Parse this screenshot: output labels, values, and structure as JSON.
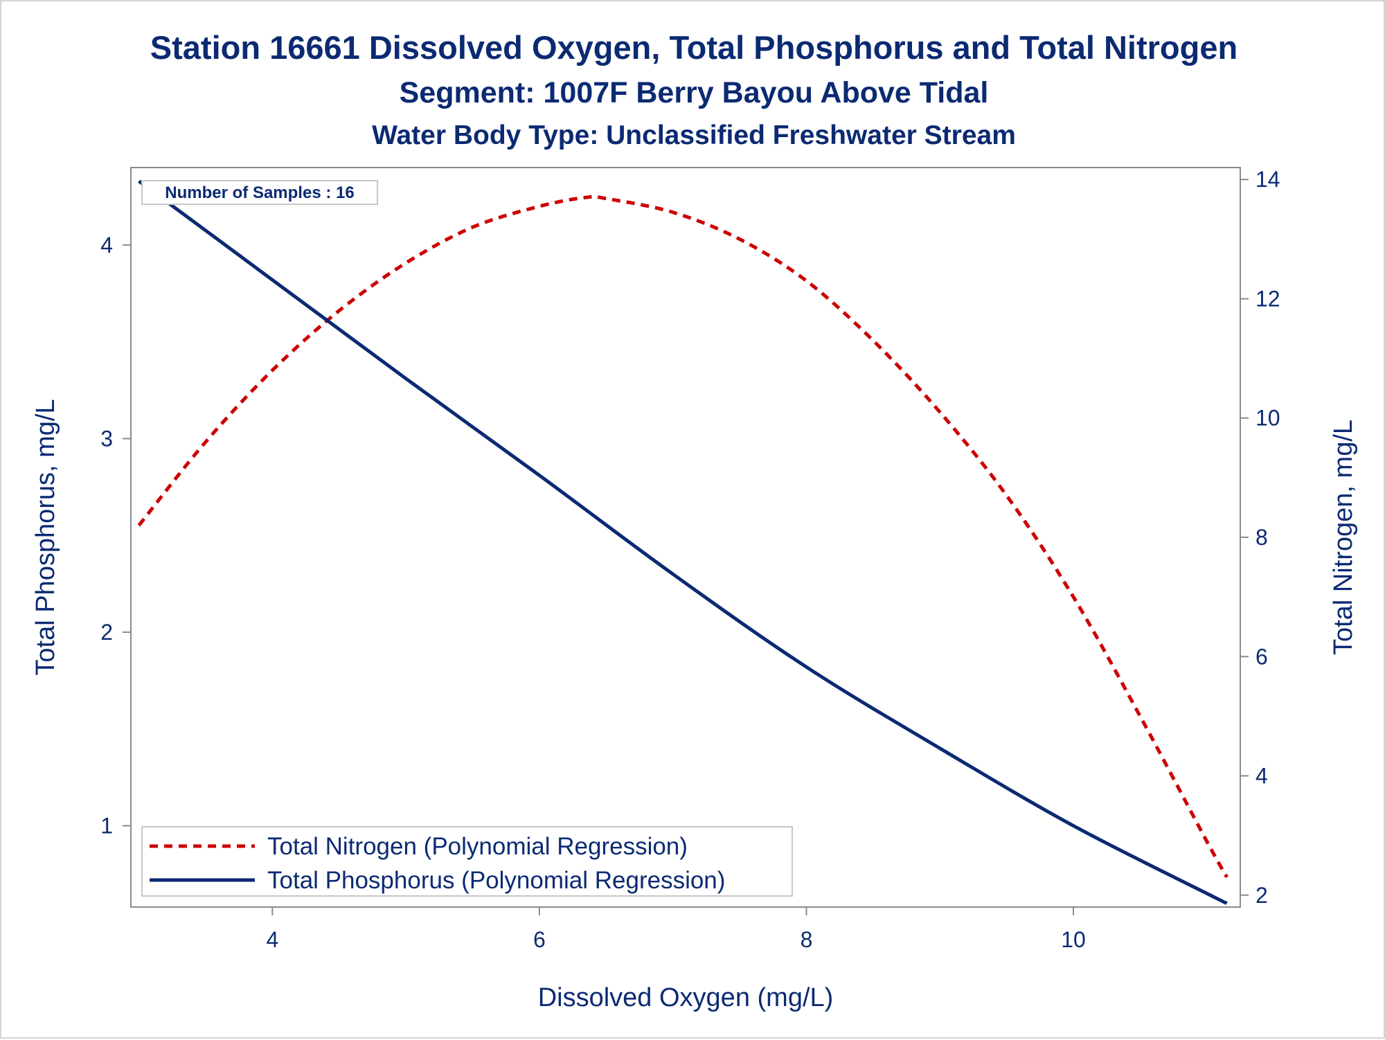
{
  "chart_data": {
    "type": "line",
    "title": "Station 16661  Dissolved Oxygen, Total Phosphorus and Total Nitrogen",
    "subtitle": "Segment: 1007F  Berry Bayou Above Tidal",
    "subtitle2": "Water Body Type: Unclassified Freshwater Stream",
    "xlabel": "Dissolved Oxygen (mg/L)",
    "ylabel": "Total Phosphorus, mg/L",
    "y2label": "Total Nitrogen, mg/L",
    "xlim": [
      2.94,
      11.25
    ],
    "ylim": [
      0.58,
      4.4
    ],
    "y2lim": [
      1.8,
      14.2
    ],
    "x_ticks": [
      4,
      6,
      8,
      10
    ],
    "y_ticks": [
      1,
      2,
      3,
      4
    ],
    "y2_ticks": [
      2,
      4,
      6,
      8,
      10,
      12,
      14
    ],
    "grid": false,
    "legend_position": "bottom-left",
    "inset_label": "Number of Samples : 16",
    "series": [
      {
        "name": "Total Nitrogen (Polynomial Regression)",
        "axis": "right",
        "style": "dashed",
        "color": "#cc0000",
        "x": [
          3.0,
          3.5,
          4.0,
          4.5,
          5.0,
          5.5,
          6.0,
          6.35,
          6.5,
          7.0,
          7.5,
          8.0,
          8.5,
          9.0,
          9.5,
          10.0,
          10.5,
          11.0,
          11.15
        ],
        "values": [
          8.2,
          9.6,
          10.8,
          11.8,
          12.6,
          13.2,
          13.55,
          13.7,
          13.68,
          13.45,
          13.0,
          12.3,
          11.3,
          10.1,
          8.7,
          7.0,
          5.0,
          2.9,
          2.3
        ]
      },
      {
        "name": "Total Phosphorus (Polynomial Regression)",
        "axis": "left",
        "style": "solid",
        "color": "#0b2a72",
        "x": [
          3.0,
          4.0,
          5.0,
          6.0,
          7.0,
          8.0,
          9.0,
          10.0,
          11.0,
          11.15
        ],
        "values": [
          4.33,
          3.82,
          3.31,
          2.81,
          2.3,
          1.82,
          1.4,
          1.0,
          0.65,
          0.6
        ]
      }
    ]
  }
}
